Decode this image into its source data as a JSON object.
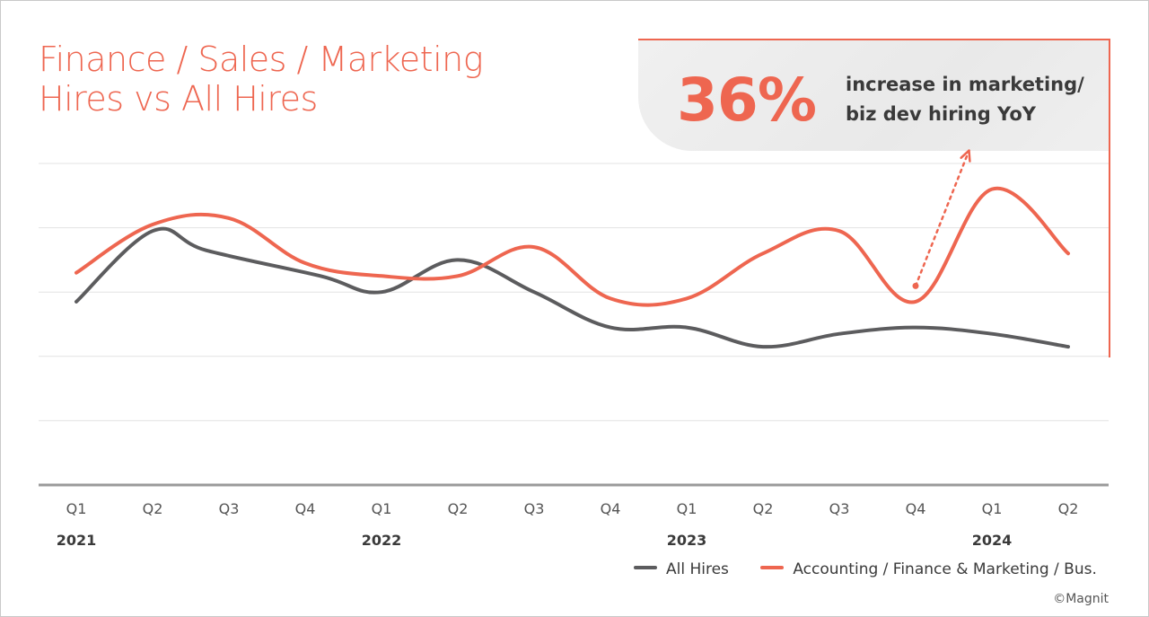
{
  "title": {
    "line1": "Finance / Sales / Marketing",
    "line2": "Hires vs All Hires"
  },
  "callout": {
    "value": "36%",
    "text_line1": "increase in marketing/",
    "text_line2": "biz dev hiring YoY"
  },
  "chart_data": {
    "type": "line",
    "title": "Finance / Sales / Marketing Hires vs All Hires",
    "xlabel": "",
    "ylabel": "",
    "categories": [
      "Q1",
      "Q2",
      "Q3",
      "Q4",
      "Q1",
      "Q2",
      "Q3",
      "Q4",
      "Q1",
      "Q2",
      "Q3",
      "Q4",
      "Q1",
      "Q2"
    ],
    "years": [
      {
        "label": "2021",
        "index": 0
      },
      {
        "label": "2022",
        "index": 4
      },
      {
        "label": "2023",
        "index": 8
      },
      {
        "label": "2024",
        "index": 12
      }
    ],
    "ylim": [
      0,
      5
    ],
    "grid": true,
    "legend_position": "bottom-right",
    "series": [
      {
        "name": "All Hires",
        "color": "#5c5c5e",
        "x": [
          0,
          1,
          1.7,
          3.2,
          4,
          5,
          6,
          7,
          8,
          9,
          10,
          11,
          12,
          13
        ],
        "values": [
          2.85,
          3.95,
          3.65,
          3.25,
          3.0,
          3.5,
          3.0,
          2.45,
          2.45,
          2.15,
          2.35,
          2.45,
          2.35,
          2.15
        ]
      },
      {
        "name": "Accounting / Finance & Marketing / Bus.",
        "color": "#ee6650",
        "x": [
          0,
          1,
          2,
          3,
          4,
          5,
          6,
          7,
          8,
          9,
          10,
          11,
          12,
          13
        ],
        "values": [
          3.3,
          4.05,
          4.15,
          3.45,
          3.25,
          3.25,
          3.7,
          2.9,
          2.9,
          3.6,
          3.95,
          2.85,
          4.6,
          3.6
        ]
      }
    ],
    "annotation": {
      "type": "dotted-arrow",
      "from_x": 11,
      "from_y": 2.9,
      "to_x": 11.7,
      "to_y": 4.95,
      "color": "#ee6650"
    }
  },
  "legend": {
    "items": [
      {
        "label": "All Hires",
        "color": "#5c5c5e"
      },
      {
        "label": "Accounting / Finance & Marketing / Bus.",
        "color": "#ee6650"
      }
    ]
  },
  "credit": "©Magnit"
}
